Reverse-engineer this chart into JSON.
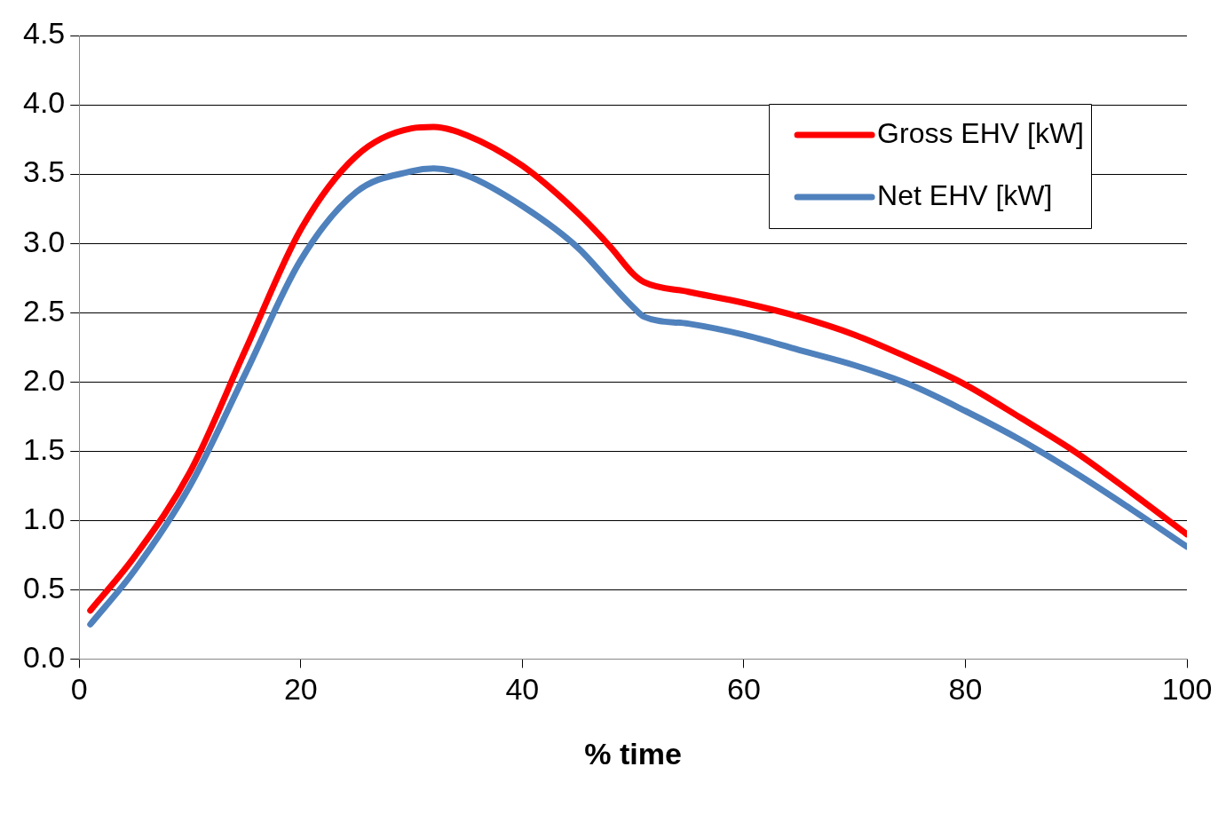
{
  "chart_data": {
    "type": "line",
    "xlabel": "% time",
    "x": [
      1,
      5,
      10,
      15,
      20,
      25,
      30,
      32,
      35,
      40,
      45,
      48,
      50,
      51,
      55,
      60,
      65,
      70,
      75,
      80,
      85,
      90,
      95,
      100
    ],
    "series": [
      {
        "name": "Gross EHV [kW]",
        "color": "#ff0000",
        "values": [
          0.35,
          0.74,
          1.35,
          2.23,
          3.1,
          3.63,
          3.83,
          3.84,
          3.78,
          3.56,
          3.22,
          2.97,
          2.78,
          2.72,
          2.65,
          2.57,
          2.47,
          2.34,
          2.17,
          1.98,
          1.74,
          1.49,
          1.2,
          0.9
        ]
      },
      {
        "name": "Net EHV [kW]",
        "color": "#4f81bd",
        "values": [
          0.25,
          0.64,
          1.25,
          2.06,
          2.88,
          3.37,
          3.52,
          3.54,
          3.49,
          3.27,
          2.97,
          2.71,
          2.54,
          2.47,
          2.42,
          2.34,
          2.23,
          2.12,
          1.98,
          1.79,
          1.58,
          1.34,
          1.08,
          0.81
        ]
      }
    ],
    "xlim": [
      0,
      100
    ],
    "xticks": [
      0,
      20,
      40,
      60,
      80,
      100
    ],
    "ylim": [
      0,
      4.5
    ],
    "yticks": [
      {
        "value": 0,
        "label": "0.0"
      },
      0.5,
      {
        "value": 1,
        "label": "1.0"
      },
      1.5,
      {
        "value": 2,
        "label": "2.0"
      },
      2.5,
      {
        "value": 3,
        "label": "3.0"
      },
      3.5,
      {
        "value": 4,
        "label": "4.0"
      },
      4.5
    ],
    "grid": "y",
    "legend": "top right",
    "marker": "none",
    "line_style": "solid"
  }
}
